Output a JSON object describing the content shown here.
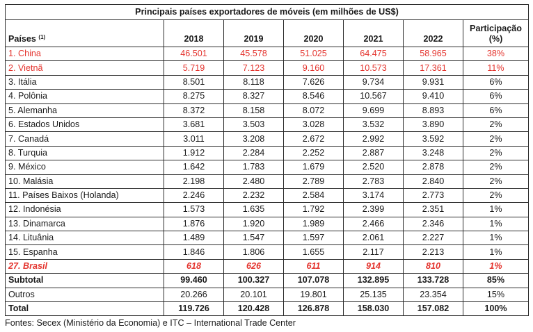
{
  "table": {
    "title": "Principais países exportadores de móveis (em milhões de US$)",
    "country_header": "Países",
    "country_header_note": "(1)",
    "years": [
      "2018",
      "2019",
      "2020",
      "2021",
      "2022"
    ],
    "share_header_line1": "Participação",
    "share_header_line2": "(%)",
    "rows": [
      {
        "country": "1. China",
        "values": [
          "46.501",
          "45.578",
          "51.025",
          "64.475",
          "58.965"
        ],
        "share": "38%",
        "style": "highlight"
      },
      {
        "country": "2. Vietnã",
        "values": [
          "5.719",
          "7.123",
          "9.160",
          "10.573",
          "17.361"
        ],
        "share": "11%",
        "style": "highlight"
      },
      {
        "country": "3. Itália",
        "values": [
          "8.501",
          "8.118",
          "7.626",
          "9.734",
          "9.931"
        ],
        "share": "6%",
        "style": ""
      },
      {
        "country": "4. Polônia",
        "values": [
          "8.275",
          "8.327",
          "8.546",
          "10.567",
          "9.410"
        ],
        "share": "6%",
        "style": ""
      },
      {
        "country": "5. Alemanha",
        "values": [
          "8.372",
          "8.158",
          "8.072",
          "9.699",
          "8.893"
        ],
        "share": "6%",
        "style": ""
      },
      {
        "country": "6. Estados Unidos",
        "values": [
          "3.681",
          "3.503",
          "3.028",
          "3.532",
          "3.890"
        ],
        "share": "2%",
        "style": ""
      },
      {
        "country": "7. Canadá",
        "values": [
          "3.011",
          "3.208",
          "2.672",
          "2.992",
          "3.592"
        ],
        "share": "2%",
        "style": ""
      },
      {
        "country": "8. Turquia",
        "values": [
          "1.912",
          "2.284",
          "2.252",
          "2.887",
          "3.248"
        ],
        "share": "2%",
        "style": ""
      },
      {
        "country": "9. México",
        "values": [
          "1.642",
          "1.783",
          "1.679",
          "2.520",
          "2.878"
        ],
        "share": "2%",
        "style": ""
      },
      {
        "country": "10. Malásia",
        "values": [
          "2.198",
          "2.480",
          "2.789",
          "2.783",
          "2.840"
        ],
        "share": "2%",
        "style": ""
      },
      {
        "country": "11. Países Baixos (Holanda)",
        "values": [
          "2.246",
          "2.232",
          "2.584",
          "3.174",
          "2.773"
        ],
        "share": "2%",
        "style": ""
      },
      {
        "country": "12. Indonésia",
        "values": [
          "1.573",
          "1.635",
          "1.792",
          "2.399",
          "2.351"
        ],
        "share": "1%",
        "style": ""
      },
      {
        "country": "13. Dinamarca",
        "values": [
          "1.876",
          "1.920",
          "1.989",
          "2.466",
          "2.346"
        ],
        "share": "1%",
        "style": ""
      },
      {
        "country": "14. Lituânia",
        "values": [
          "1.489",
          "1.547",
          "1.597",
          "2.061",
          "2.227"
        ],
        "share": "1%",
        "style": ""
      },
      {
        "country": "15. Espanha",
        "values": [
          "1.846",
          "1.806",
          "1.655",
          "2.117",
          "2.213"
        ],
        "share": "1%",
        "style": ""
      },
      {
        "country": "27. Brasil",
        "values": [
          "618",
          "626",
          "611",
          "914",
          "810"
        ],
        "share": "1%",
        "style": "brasil"
      },
      {
        "country": "Subtotal",
        "values": [
          "99.460",
          "100.327",
          "107.078",
          "132.895",
          "133.728"
        ],
        "share": "85%",
        "style": "bold"
      },
      {
        "country": "Outros",
        "values": [
          "20.266",
          "20.101",
          "19.801",
          "25.135",
          "23.354"
        ],
        "share": "15%",
        "style": ""
      },
      {
        "country": "Total",
        "values": [
          "119.726",
          "120.428",
          "126.878",
          "158.030",
          "157.082"
        ],
        "share": "100%",
        "style": "bold"
      }
    ]
  },
  "source": "Fontes: Secex (Ministério da Economia) e ITC – International Trade Center",
  "colors": {
    "highlight": "#e4332d",
    "border": "#2b2b2b",
    "text": "#1a1a1a"
  }
}
